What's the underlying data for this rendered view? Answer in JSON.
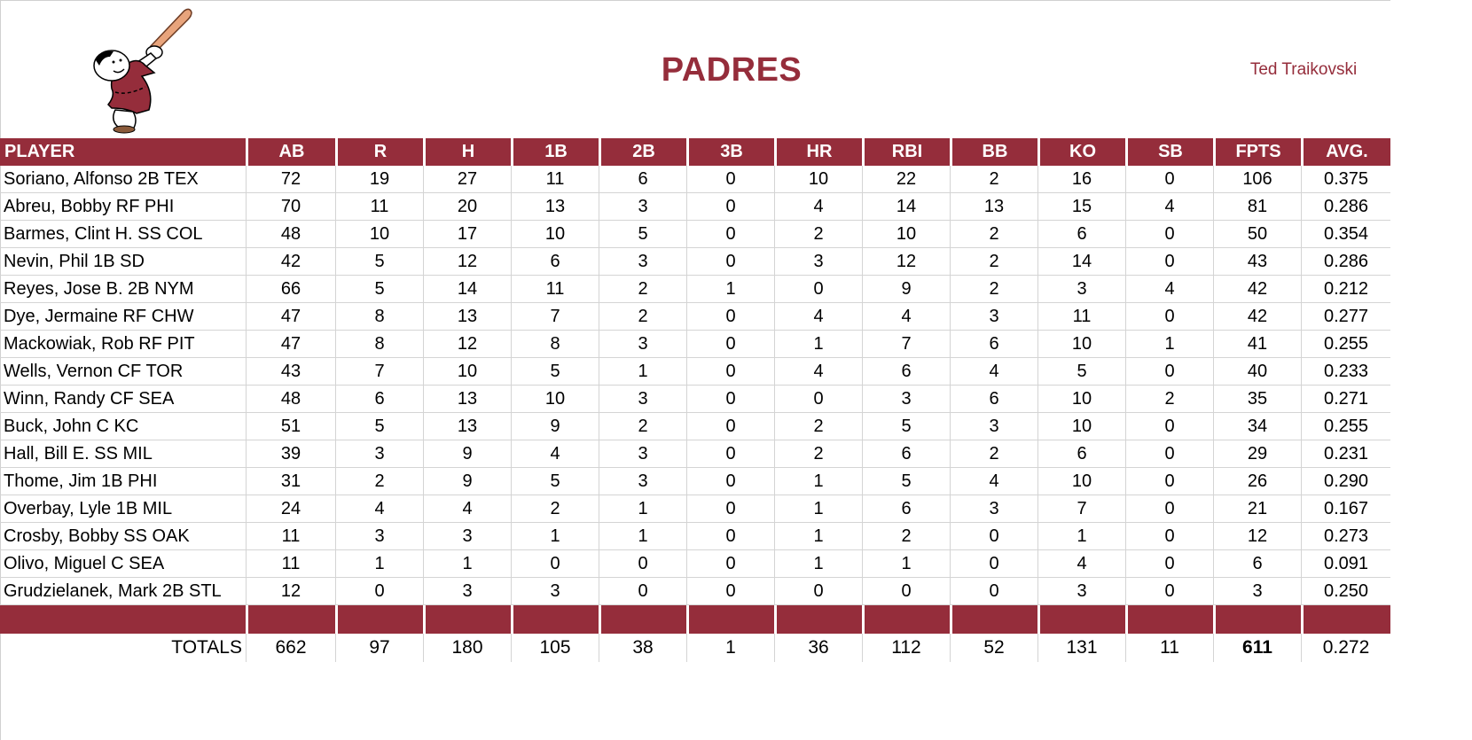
{
  "header": {
    "team_name": "PADRES",
    "owner": "Ted Traikovski",
    "logo_icon": "padres-friar-swinging-bat-logo"
  },
  "colors": {
    "accent": "#952d3b",
    "grid": "#d4d4d4"
  },
  "table": {
    "columns": [
      "PLAYER",
      "AB",
      "R",
      "H",
      "1B",
      "2B",
      "3B",
      "HR",
      "RBI",
      "BB",
      "KO",
      "SB",
      "FPTS",
      "AVG."
    ],
    "rows": [
      [
        "Soriano, Alfonso 2B TEX",
        "72",
        "19",
        "27",
        "11",
        "6",
        "0",
        "10",
        "22",
        "2",
        "16",
        "0",
        "106",
        "0.375"
      ],
      [
        "Abreu, Bobby RF PHI",
        "70",
        "11",
        "20",
        "13",
        "3",
        "0",
        "4",
        "14",
        "13",
        "15",
        "4",
        "81",
        "0.286"
      ],
      [
        "Barmes, Clint H. SS COL",
        "48",
        "10",
        "17",
        "10",
        "5",
        "0",
        "2",
        "10",
        "2",
        "6",
        "0",
        "50",
        "0.354"
      ],
      [
        "Nevin, Phil 1B SD",
        "42",
        "5",
        "12",
        "6",
        "3",
        "0",
        "3",
        "12",
        "2",
        "14",
        "0",
        "43",
        "0.286"
      ],
      [
        "Reyes, Jose B. 2B NYM",
        "66",
        "5",
        "14",
        "11",
        "2",
        "1",
        "0",
        "9",
        "2",
        "3",
        "4",
        "42",
        "0.212"
      ],
      [
        "Dye, Jermaine RF CHW",
        "47",
        "8",
        "13",
        "7",
        "2",
        "0",
        "4",
        "4",
        "3",
        "11",
        "0",
        "42",
        "0.277"
      ],
      [
        "Mackowiak, Rob RF PIT",
        "47",
        "8",
        "12",
        "8",
        "3",
        "0",
        "1",
        "7",
        "6",
        "10",
        "1",
        "41",
        "0.255"
      ],
      [
        "Wells, Vernon CF TOR",
        "43",
        "7",
        "10",
        "5",
        "1",
        "0",
        "4",
        "6",
        "4",
        "5",
        "0",
        "40",
        "0.233"
      ],
      [
        "Winn, Randy CF SEA",
        "48",
        "6",
        "13",
        "10",
        "3",
        "0",
        "0",
        "3",
        "6",
        "10",
        "2",
        "35",
        "0.271"
      ],
      [
        "Buck, John C KC",
        "51",
        "5",
        "13",
        "9",
        "2",
        "0",
        "2",
        "5",
        "3",
        "10",
        "0",
        "34",
        "0.255"
      ],
      [
        "Hall, Bill E. SS MIL",
        "39",
        "3",
        "9",
        "4",
        "3",
        "0",
        "2",
        "6",
        "2",
        "6",
        "0",
        "29",
        "0.231"
      ],
      [
        "Thome, Jim 1B PHI",
        "31",
        "2",
        "9",
        "5",
        "3",
        "0",
        "1",
        "5",
        "4",
        "10",
        "0",
        "26",
        "0.290"
      ],
      [
        "Overbay, Lyle 1B MIL",
        "24",
        "4",
        "4",
        "2",
        "1",
        "0",
        "1",
        "6",
        "3",
        "7",
        "0",
        "21",
        "0.167"
      ],
      [
        "Crosby, Bobby SS OAK",
        "11",
        "3",
        "3",
        "1",
        "1",
        "0",
        "1",
        "2",
        "0",
        "1",
        "0",
        "12",
        "0.273"
      ],
      [
        "Olivo, Miguel C SEA",
        "11",
        "1",
        "1",
        "0",
        "0",
        "0",
        "1",
        "1",
        "0",
        "4",
        "0",
        "6",
        "0.091"
      ],
      [
        "Grudzielanek, Mark 2B STL",
        "12",
        "0",
        "3",
        "3",
        "0",
        "0",
        "0",
        "0",
        "0",
        "3",
        "0",
        "3",
        "0.250"
      ]
    ],
    "totals": [
      "TOTALS",
      "662",
      "97",
      "180",
      "105",
      "38",
      "1",
      "36",
      "112",
      "52",
      "131",
      "11",
      "611",
      "0.272"
    ]
  }
}
